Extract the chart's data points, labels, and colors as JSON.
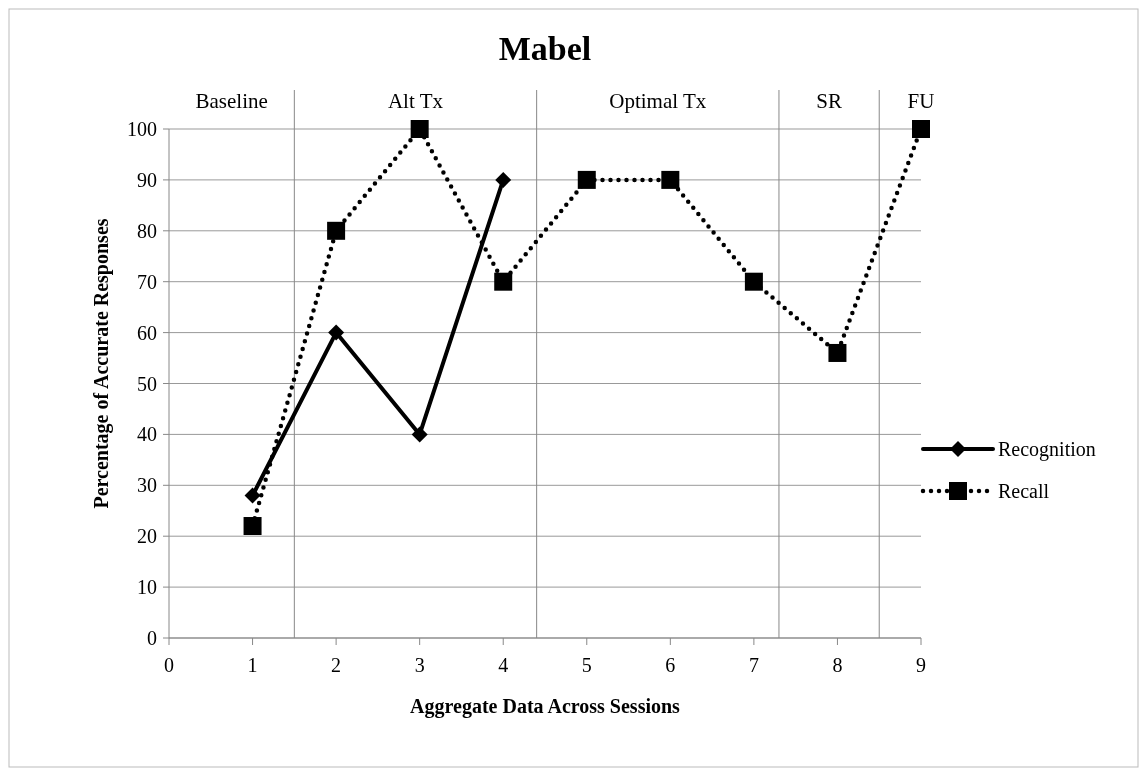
{
  "chart_data": {
    "type": "line",
    "title": "Mabel",
    "xlabel": "Aggregate Data Across Sessions",
    "ylabel": "Percentage of Accurate Responses",
    "x": [
      1,
      2,
      3,
      4,
      5,
      6,
      7,
      8,
      9
    ],
    "series": [
      {
        "name": "Recognition",
        "color": "#000000",
        "marker": "diamond",
        "line_style": "solid",
        "values": [
          28,
          60,
          40,
          90,
          null,
          null,
          null,
          null,
          null
        ]
      },
      {
        "name": "Recall",
        "color": "#000000",
        "marker": "square",
        "line_style": "dotted",
        "values": [
          22,
          80,
          100,
          70,
          90,
          90,
          70,
          56,
          100
        ]
      }
    ],
    "xlim": [
      0,
      9
    ],
    "xticks": [
      0,
      1,
      2,
      3,
      4,
      5,
      6,
      7,
      8,
      9
    ],
    "ylim": [
      0,
      100
    ],
    "yticks": [
      0,
      10,
      20,
      30,
      40,
      50,
      60,
      70,
      80,
      90,
      100
    ],
    "grid": "y",
    "legend": "right",
    "ref_lines": [
      {
        "axis": "x",
        "value": 1.5
      },
      {
        "axis": "x",
        "value": 4.4
      },
      {
        "axis": "x",
        "value": 7.3
      },
      {
        "axis": "x",
        "value": 8.5
      }
    ],
    "annotations": [
      "Baseline",
      "Alt Tx",
      "Optimal Tx",
      "SR",
      "FU"
    ]
  }
}
